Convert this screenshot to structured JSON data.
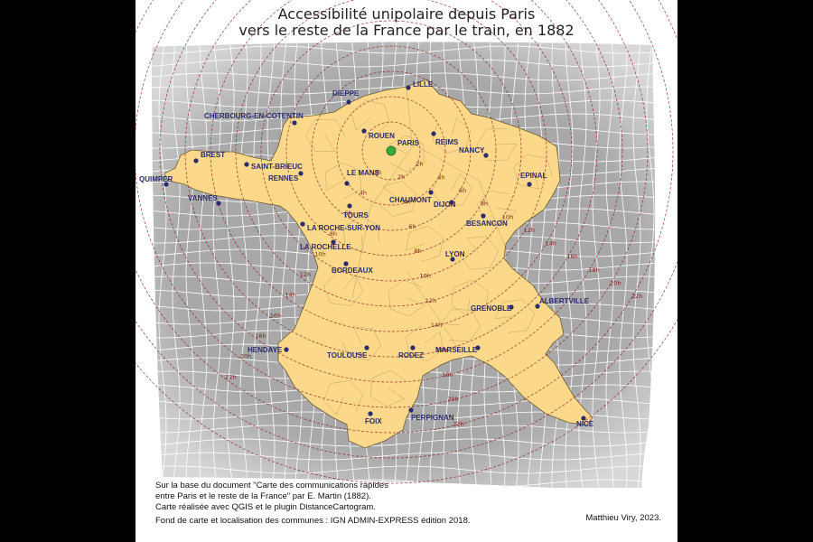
{
  "title_line1": "Accessibilité unipolaire depuis Paris",
  "title_line2": "vers le reste de la France par le train, en 1882",
  "credits": [
    "Sur la base du document \"Carte des communications rapides",
    "entre Paris et le reste de la France\" par E. Martin (1882).",
    "Carte réalisée avec QGIS et le plugin DistanceCartogram.",
    "Fond de carte et localisation des communes : IGN ADMIN-EXPRESS édition 2018."
  ],
  "author": "Matthieu Viry, 2023.",
  "colors": {
    "land": "#fcd98a",
    "grid_bg": "#a8a8a8",
    "grid_line": "#ffffff",
    "ring": "#8b1a1a",
    "city_dot": "#2b2b6e",
    "paris_dot": "#3aa83a"
  },
  "isochrone_labels": [
    "2h",
    "4h",
    "6h",
    "8h",
    "10h",
    "12h",
    "14h",
    "16h",
    "18h",
    "20h",
    "22h"
  ],
  "cities": [
    {
      "name": "LILLE",
      "marker": "city"
    },
    {
      "name": "DIEPPE",
      "marker": "city"
    },
    {
      "name": "CHERBOURG-EN-COTENTIN",
      "marker": "city"
    },
    {
      "name": "ROUEN",
      "marker": "city"
    },
    {
      "name": "PARIS",
      "marker": "origin"
    },
    {
      "name": "REIMS",
      "marker": "city"
    },
    {
      "name": "NANCY",
      "marker": "city"
    },
    {
      "name": "BREST",
      "marker": "city"
    },
    {
      "name": "SAINT-BRIEUC",
      "marker": "city"
    },
    {
      "name": "RENNES",
      "marker": "city"
    },
    {
      "name": "LE MANS",
      "marker": "city"
    },
    {
      "name": "EPINAL",
      "marker": "city"
    },
    {
      "name": "QUIMPER",
      "marker": "city"
    },
    {
      "name": "VANNES",
      "marker": "city"
    },
    {
      "name": "CHAUMONT",
      "marker": "city"
    },
    {
      "name": "DIJON",
      "marker": "city"
    },
    {
      "name": "TOURS",
      "marker": "city"
    },
    {
      "name": "BESANCON",
      "marker": "city"
    },
    {
      "name": "LA ROCHE-SUR-YON",
      "marker": "city"
    },
    {
      "name": "LA ROCHELLE",
      "marker": "city"
    },
    {
      "name": "LYON",
      "marker": "city"
    },
    {
      "name": "BORDEAUX",
      "marker": "city"
    },
    {
      "name": "GRENOBLE",
      "marker": "city"
    },
    {
      "name": "ALBERTVILLE",
      "marker": "city"
    },
    {
      "name": "HENDAYE",
      "marker": "city"
    },
    {
      "name": "TOULOUSE",
      "marker": "city"
    },
    {
      "name": "RODEZ",
      "marker": "city"
    },
    {
      "name": "MARSEILLE",
      "marker": "city"
    },
    {
      "name": "PERPIGNAN",
      "marker": "city"
    },
    {
      "name": "FOIX",
      "marker": "city"
    },
    {
      "name": "NICE",
      "marker": "city"
    }
  ]
}
